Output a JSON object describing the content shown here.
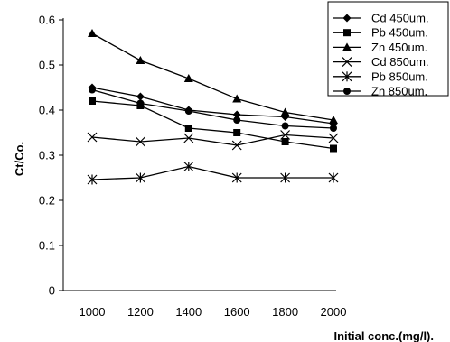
{
  "chart_data": {
    "type": "line",
    "title": "",
    "xlabel": "Initial conc.(mg/l).",
    "ylabel": "Ct/Co.",
    "x": [
      1000,
      1200,
      1400,
      1600,
      1800,
      2000
    ],
    "x_tick_labels": [
      "1000",
      "1200",
      "1400",
      "1600",
      "1800",
      "2000"
    ],
    "ylim": [
      0,
      0.6
    ],
    "y_ticks": [
      0,
      0.1,
      0.2,
      0.3,
      0.4,
      0.5,
      0.6
    ],
    "y_tick_labels": [
      "0",
      "0.1",
      "0.2",
      "0.3",
      "0.4",
      "0.5",
      "0.6"
    ],
    "grid": false,
    "legend_position": "top-right",
    "series": [
      {
        "name": "Cd 450um.",
        "marker": "diamond",
        "values": [
          0.45,
          0.43,
          0.4,
          0.39,
          0.385,
          0.37
        ]
      },
      {
        "name": "Pb 450um.",
        "marker": "square",
        "values": [
          0.42,
          0.41,
          0.36,
          0.35,
          0.33,
          0.315
        ]
      },
      {
        "name": "Zn 450um.",
        "marker": "triangle",
        "values": [
          0.57,
          0.51,
          0.47,
          0.425,
          0.395,
          0.378
        ]
      },
      {
        "name": "Cd 850um.",
        "marker": "x",
        "values": [
          0.34,
          0.33,
          0.338,
          0.322,
          0.345,
          0.338
        ]
      },
      {
        "name": "Pb 850um.",
        "marker": "star",
        "values": [
          0.246,
          0.25,
          0.275,
          0.25,
          0.25,
          0.25
        ]
      },
      {
        "name": "Zn 850um.",
        "marker": "circle",
        "values": [
          0.445,
          0.415,
          0.398,
          0.378,
          0.365,
          0.36
        ]
      }
    ],
    "colors": {
      "line": "#000000",
      "background": "#ffffff"
    }
  }
}
